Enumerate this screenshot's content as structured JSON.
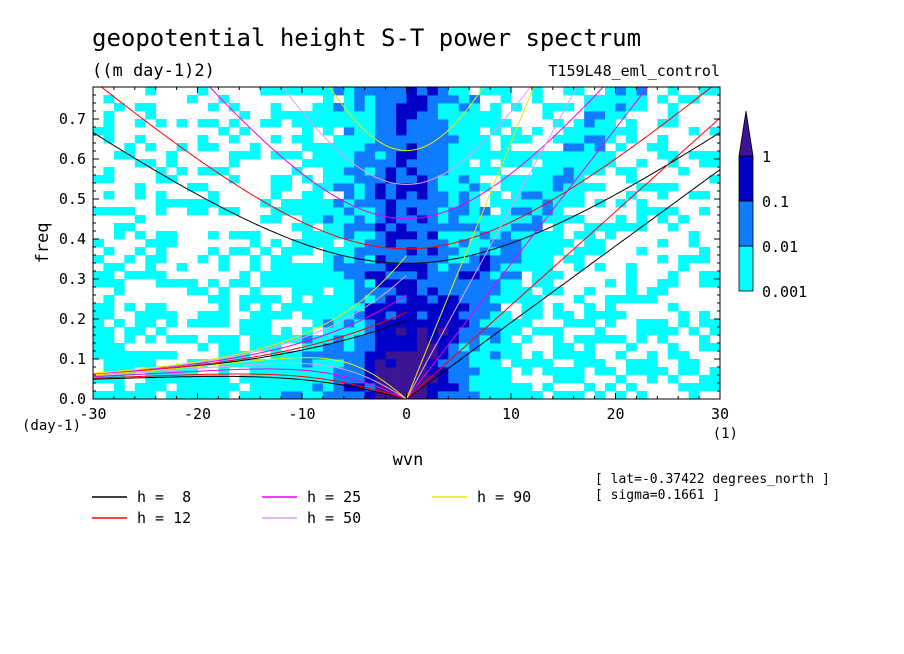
{
  "chart_data": {
    "type": "heatmap",
    "title": "geopotential height S-T power spectrum",
    "subtitle": "((m day-1)2)",
    "run_label": "T159L48_eml_control",
    "xlabel": "wvn",
    "ylabel": "freq",
    "x_unit": "(1)",
    "y_unit": "(day-1)",
    "xlim": [
      -30,
      30
    ],
    "ylim": [
      0,
      0.78
    ],
    "x_ticks": [
      -30,
      -20,
      -10,
      0,
      10,
      20,
      30
    ],
    "x_tick_labels": [
      "-30",
      "-20",
      "-10",
      "0",
      "10",
      "20",
      "30"
    ],
    "y_ticks": [
      0,
      0.1,
      0.2,
      0.3,
      0.4,
      0.5,
      0.6,
      0.7
    ],
    "y_tick_labels": [
      "0.0",
      "0.1",
      "0.2",
      "0.3",
      "0.4",
      "0.5",
      "0.6",
      "0.7"
    ],
    "color_levels": [
      0.001,
      0.01,
      0.1,
      1
    ],
    "color_level_labels": [
      "0.001",
      "0.01",
      "0.1",
      "1"
    ],
    "colors": [
      "#00ffff",
      "#0f7bff",
      "#0000c8",
      "#3c1596"
    ],
    "dispersion_curves": [
      {
        "label": "h =  8",
        "h": 8,
        "color": "#000000"
      },
      {
        "label": "h = 12",
        "h": 12,
        "color": "#ff0000"
      },
      {
        "label": "h = 25",
        "h": 25,
        "color": "#e800e8"
      },
      {
        "label": "h = 50",
        "h": 50,
        "color": "#e0a0f0"
      },
      {
        "label": "h = 90",
        "h": 90,
        "color": "#e8e800"
      }
    ],
    "info_lines": [
      "[ lat=-0.37422 degrees_north ]",
      "[ sigma=0.1661 ]"
    ]
  }
}
